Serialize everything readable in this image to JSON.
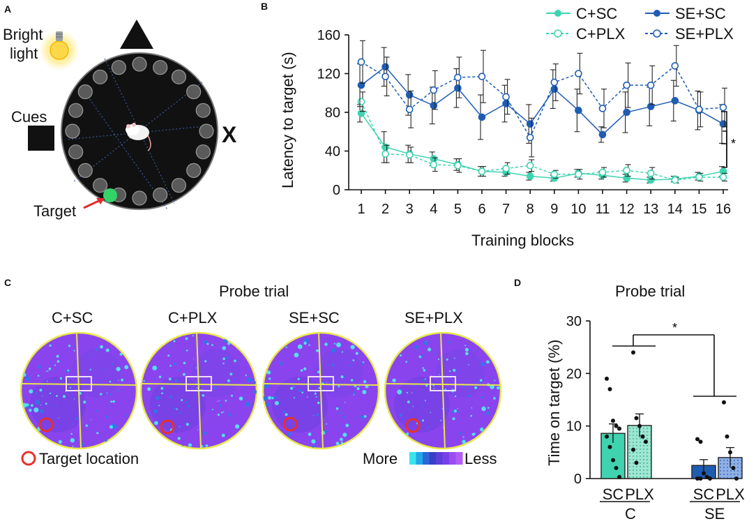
{
  "panels": {
    "a": "A",
    "b": "B",
    "c": "C",
    "d": "D"
  },
  "colors": {
    "teal": "#3fd3b0",
    "teal_dark": "#22b894",
    "blue": "#1f5db3",
    "blue_dark": "#14418a",
    "heat_bg": "#8a44ee",
    "heat_spot": "#4ff0f0",
    "target_ring": "#e8302a",
    "pool": "#111111"
  },
  "panelA": {
    "bright_light": [
      "Bright",
      "light"
    ],
    "cues_label": "Cues",
    "x_cue": "X",
    "target_label": "Target",
    "icons": [
      "light-bulb-icon",
      "triangle-cue-icon",
      "square-cue-icon",
      "mouse-icon"
    ]
  },
  "chart_data": [
    {
      "type": "line",
      "xlabel": "Training blocks",
      "ylabel": "Latency to target (s)",
      "ylim": [
        0,
        160
      ],
      "yticks": [
        0,
        40,
        80,
        120,
        160
      ],
      "x": [
        1,
        2,
        3,
        4,
        5,
        6,
        7,
        8,
        9,
        10,
        11,
        12,
        13,
        14,
        15,
        16
      ],
      "series": [
        {
          "name": "C+SC",
          "style": "solid-filled",
          "values": [
            79,
            44,
            37,
            32,
            26,
            19,
            18,
            14,
            12,
            17,
            15,
            12,
            10,
            11,
            14,
            19
          ],
          "errors": [
            9,
            16,
            9,
            7,
            6,
            5,
            4,
            4,
            3,
            4,
            4,
            4,
            3,
            3,
            4,
            5
          ]
        },
        {
          "name": "C+PLX",
          "style": "dashed-open",
          "values": [
            91,
            37,
            36,
            26,
            25,
            19,
            22,
            25,
            16,
            16,
            18,
            20,
            17,
            10,
            13,
            13
          ],
          "errors": [
            10,
            9,
            8,
            7,
            7,
            5,
            6,
            6,
            4,
            5,
            5,
            6,
            6,
            3,
            4,
            4
          ]
        },
        {
          "name": "SE+SC",
          "style": "solid-filled",
          "values": [
            108,
            127,
            98,
            87,
            105,
            75,
            89,
            68,
            104,
            82,
            57,
            80,
            86,
            92,
            82,
            68
          ],
          "errors": [
            22,
            20,
            21,
            19,
            20,
            23,
            19,
            20,
            20,
            22,
            8,
            21,
            20,
            21,
            20,
            20
          ]
        },
        {
          "name": "SE+PLX",
          "style": "dashed-open",
          "values": [
            132,
            117,
            83,
            103,
            116,
            117,
            96,
            54,
            111,
            120,
            84,
            108,
            108,
            128,
            83,
            85
          ],
          "errors": [
            22,
            20,
            19,
            20,
            21,
            27,
            18,
            20,
            19,
            21,
            20,
            23,
            20,
            21,
            18,
            20
          ]
        }
      ],
      "significance": "*"
    },
    {
      "type": "bar",
      "title": "Probe trial",
      "ylabel": "Time on target (%)",
      "ylim": [
        0,
        30
      ],
      "yticks": [
        0,
        10,
        20,
        30
      ],
      "categories": [
        "SC",
        "PLX",
        "SC",
        "PLX"
      ],
      "groups": [
        "C",
        "SE"
      ],
      "values": [
        8.6,
        10.1,
        2.5,
        4.0
      ],
      "errors": [
        1.8,
        2.2,
        1.1,
        1.9
      ],
      "points": [
        [
          19,
          17,
          11,
          10,
          9.5,
          8,
          6,
          3.5,
          2,
          0.3
        ],
        [
          24,
          11.5,
          10,
          8,
          7,
          5.5,
          3
        ],
        [
          7.5,
          7,
          1,
          0.3,
          0,
          0,
          0
        ],
        [
          14.5,
          8,
          5,
          2,
          0
        ]
      ],
      "significance": "*"
    }
  ],
  "panelC": {
    "title": "Probe trial",
    "maps": [
      "C+SC",
      "C+PLX",
      "SE+SC",
      "SE+PLX"
    ],
    "target_legend": "Target location",
    "scale_more": "More",
    "scale_less": "Less",
    "scale_colors": [
      "#3ae4ee",
      "#22a8e8",
      "#2a68d8",
      "#3a3fc8",
      "#5a3fd8",
      "#7a40e8",
      "#9a4ef0",
      "#b45cf6"
    ]
  }
}
